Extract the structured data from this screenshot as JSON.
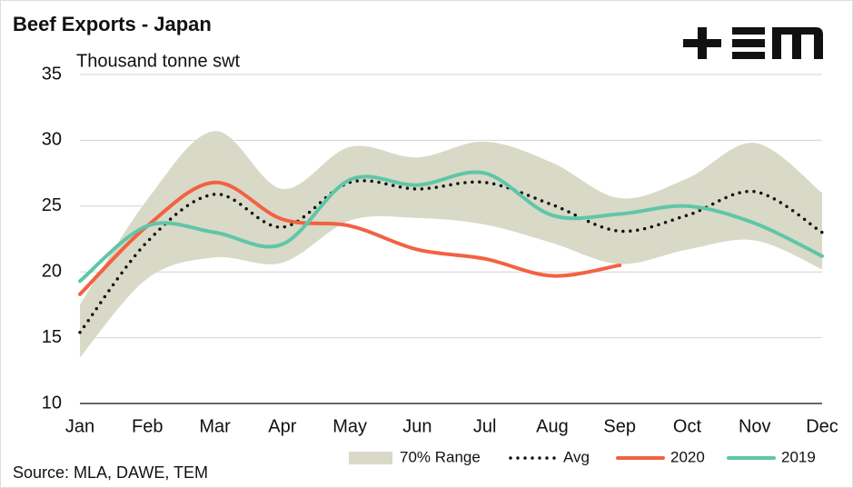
{
  "chart_data": {
    "type": "line",
    "title": "Beef Exports - Japan",
    "subtitle": "Thousand tonne swt",
    "source": "Source: MLA, DAWE, TEM",
    "categories": [
      "Jan",
      "Feb",
      "Mar",
      "Apr",
      "May",
      "Jun",
      "Jul",
      "Aug",
      "Sep",
      "Oct",
      "Nov",
      "Dec"
    ],
    "ylim": [
      10,
      35
    ],
    "yticks": [
      10,
      15,
      20,
      25,
      30,
      35
    ],
    "grid": true,
    "legend": "bottom",
    "range": {
      "name": "70% Range",
      "color": "#d9d9c7",
      "upper": [
        17.5,
        25.5,
        30.7,
        26.3,
        29.5,
        28.7,
        29.9,
        28.3,
        25.6,
        27.1,
        29.8,
        26.0
      ],
      "lower": [
        13.5,
        19.5,
        21.1,
        20.7,
        23.9,
        24.1,
        23.6,
        22.2,
        20.6,
        21.7,
        22.4,
        20.2
      ]
    },
    "series": [
      {
        "name": "Avg",
        "color": "#111111",
        "dotted": true,
        "values": [
          15.4,
          22.3,
          25.9,
          23.4,
          26.8,
          26.3,
          26.8,
          25.1,
          23.1,
          24.3,
          26.1,
          23.0
        ]
      },
      {
        "name": "2020",
        "color": "#f26241",
        "values": [
          18.3,
          23.5,
          26.8,
          24.0,
          23.5,
          21.7,
          21.0,
          19.7,
          20.5,
          null,
          null,
          null
        ]
      },
      {
        "name": "2019",
        "color": "#5fc6a8",
        "values": [
          19.3,
          23.5,
          23.0,
          22.1,
          27.0,
          26.6,
          27.5,
          24.3,
          24.4,
          25.0,
          23.7,
          21.2
        ]
      }
    ]
  }
}
